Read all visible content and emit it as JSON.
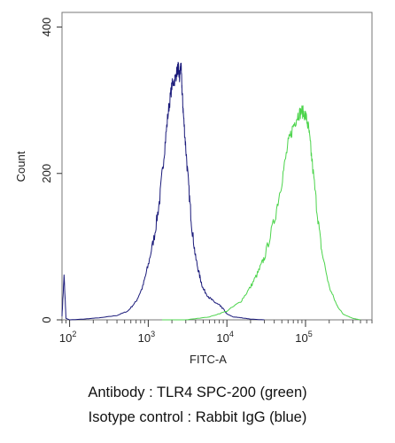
{
  "chart_data": {
    "type": "line",
    "title": "",
    "xlabel": "FITC-A",
    "ylabel": "Count",
    "x_scale": "log",
    "xlim": [
      80,
      700000
    ],
    "ylim": [
      0,
      420
    ],
    "x_ticks": [
      {
        "value": 100,
        "base": "10",
        "exp": "2"
      },
      {
        "value": 1000,
        "base": "10",
        "exp": "3"
      },
      {
        "value": 10000,
        "base": "10",
        "exp": "4"
      },
      {
        "value": 100000,
        "base": "10",
        "exp": "5"
      }
    ],
    "y_ticks": [
      {
        "value": 0,
        "label": "0"
      },
      {
        "value": 200,
        "label": "200"
      },
      {
        "value": 400,
        "label": "400"
      }
    ],
    "grid": false,
    "legend": "none",
    "series": [
      {
        "color": "#1a1a7a",
        "x": [
          80,
          85,
          90,
          100,
          150,
          250,
          400,
          550,
          700,
          850,
          1000,
          1200,
          1400,
          1600,
          1800,
          2000,
          2200,
          2400,
          2500,
          2600,
          2700,
          2800,
          3000,
          3300,
          3600,
          4000,
          4500,
          5000,
          6000,
          7000,
          8000,
          9000,
          10000,
          12000,
          15000,
          20000,
          30000
        ],
        "y": [
          5,
          60,
          2,
          0,
          1,
          3,
          6,
          12,
          25,
          45,
          75,
          115,
          165,
          230,
          285,
          320,
          330,
          345,
          330,
          350,
          310,
          280,
          235,
          175,
          125,
          85,
          60,
          42,
          30,
          24,
          20,
          15,
          8,
          4,
          3,
          1,
          0
        ]
      },
      {
        "color": "#4cd44c",
        "x": [
          1500,
          3000,
          6000,
          10000,
          15000,
          20000,
          25000,
          30000,
          40000,
          50000,
          60000,
          70000,
          80000,
          90000,
          100000,
          110000,
          120000,
          140000,
          160000,
          200000,
          250000,
          300000,
          400000,
          500000
        ],
        "y": [
          0,
          0,
          4,
          12,
          25,
          45,
          65,
          85,
          135,
          190,
          240,
          265,
          280,
          285,
          280,
          260,
          220,
          150,
          95,
          45,
          20,
          8,
          2,
          0
        ]
      }
    ]
  },
  "caption": {
    "line1": "Antibody : TLR4  SPC-200 (green)",
    "line2": "Isotype control : Rabbit IgG (blue)"
  }
}
